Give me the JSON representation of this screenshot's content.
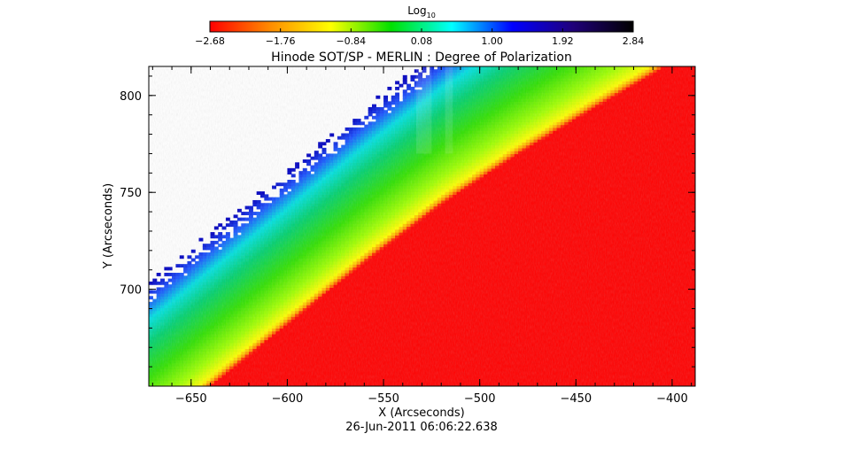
{
  "colorbar": {
    "label_main": "Log",
    "label_sub": "10",
    "ticks": [
      "-2.68",
      "-1.76",
      "-0.84",
      "0.08",
      "1.00",
      "1.92",
      "2.84"
    ],
    "colors": [
      "#ff0000",
      "#ff8c00",
      "#ffff00",
      "#00e000",
      "#00ffff",
      "#0000ff",
      "#20007a",
      "#000000"
    ]
  },
  "chart_data": {
    "type": "heatmap",
    "title": "Hinode SOT/SP - MERLIN : Degree of Polarization",
    "xlabel": "X (Arcseconds)",
    "ylabel": "Y (Arcseconds)",
    "xlim": [
      -672,
      -388
    ],
    "ylim": [
      650,
      815
    ],
    "x_ticks": [
      -650,
      -600,
      -550,
      -500,
      -450,
      -400
    ],
    "y_ticks": [
      700,
      750,
      800
    ],
    "x_tick_labels": [
      "−650",
      "−600",
      "−550",
      "−500",
      "−450",
      "−400"
    ],
    "y_tick_labels": [
      "700",
      "750",
      "800"
    ],
    "colorbar_range": [
      -2.68,
      2.84
    ],
    "limb_curve_x": [
      -640,
      -600,
      -560,
      -520,
      -480,
      -440,
      -407
    ],
    "limb_curve_y": [
      650,
      682,
      714,
      744,
      770,
      794,
      813
    ]
  },
  "timestamp": "26-Jun-2011 06:06:22.638"
}
